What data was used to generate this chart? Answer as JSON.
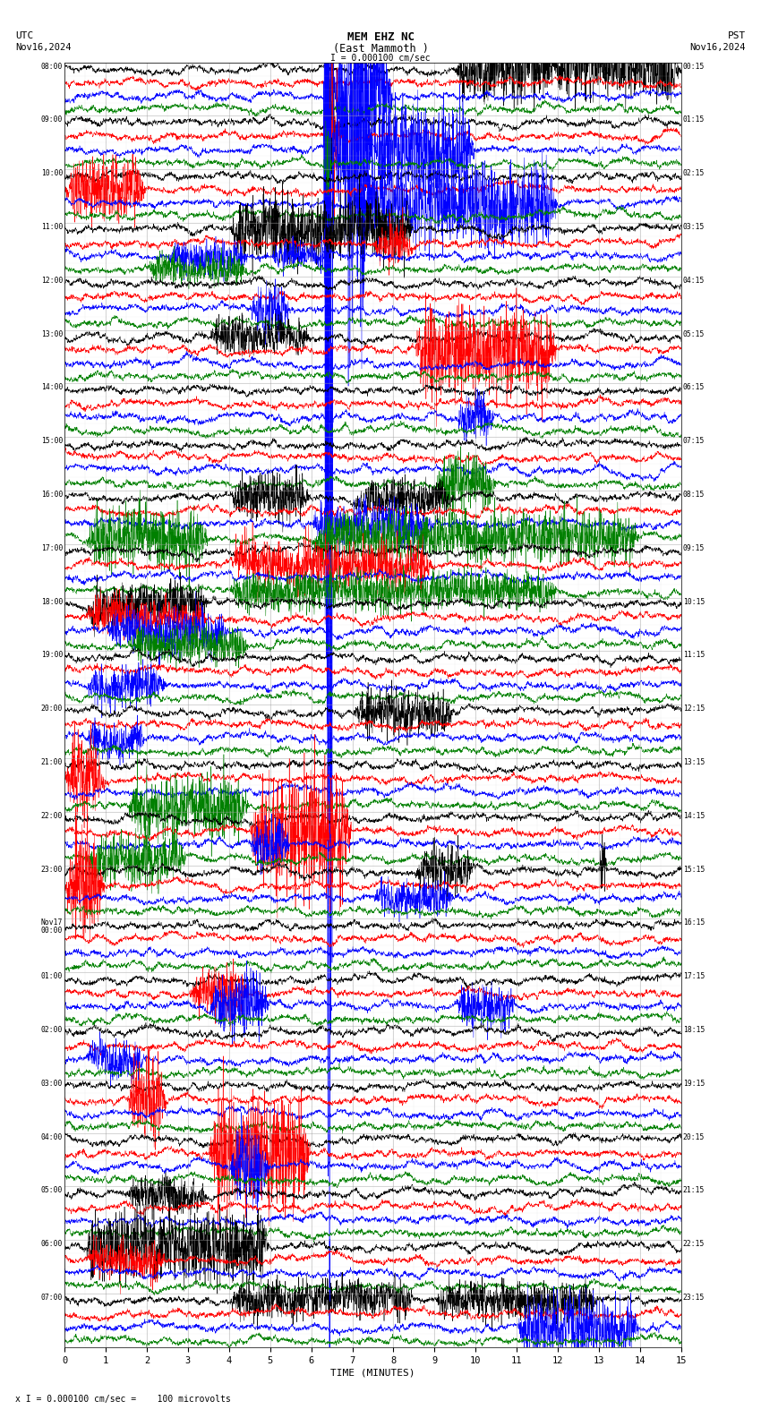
{
  "title_line1": "MEM EHZ NC",
  "title_line2": "(East Mammoth )",
  "scale_text": "I = 0.000100 cm/sec",
  "xlabel": "TIME (MINUTES)",
  "footnote": "x I = 0.000100 cm/sec =    100 microvolts",
  "bg_color": "#ffffff",
  "grid_color": "#bbbbbb",
  "colors": [
    "black",
    "red",
    "blue",
    "green"
  ],
  "left_times": [
    "08:00",
    "09:00",
    "10:00",
    "11:00",
    "12:00",
    "13:00",
    "14:00",
    "15:00",
    "16:00",
    "17:00",
    "18:00",
    "19:00",
    "20:00",
    "21:00",
    "22:00",
    "23:00",
    "Nov17\n00:00",
    "01:00",
    "02:00",
    "03:00",
    "04:00",
    "05:00",
    "06:00",
    "07:00"
  ],
  "right_times": [
    "00:15",
    "01:15",
    "02:15",
    "03:15",
    "04:15",
    "05:15",
    "06:15",
    "07:15",
    "08:15",
    "09:15",
    "10:15",
    "11:15",
    "12:15",
    "13:15",
    "14:15",
    "15:15",
    "16:15",
    "17:15",
    "18:15",
    "19:15",
    "20:15",
    "21:15",
    "22:15",
    "23:15"
  ],
  "n_hour_rows": 24,
  "n_sub": 4,
  "n_minutes": 15,
  "fig_width": 8.5,
  "fig_height": 15.84,
  "dpi": 100
}
